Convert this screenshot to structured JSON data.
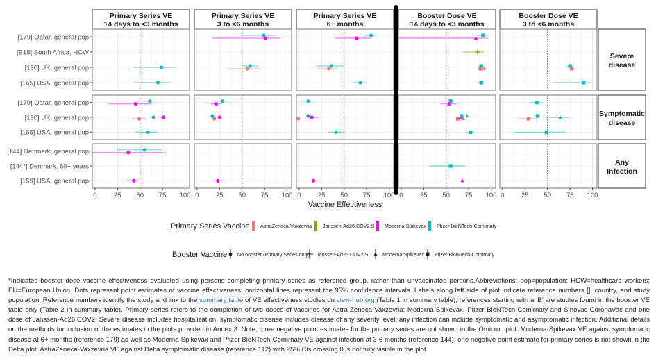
{
  "chart_data": {
    "type": "scatter",
    "subtype": "forest-plot-faceted",
    "xlabel": "Vaccine Effectiveness",
    "xlim": [
      -3,
      105
    ],
    "xticks": [
      0,
      25,
      50,
      75,
      100
    ],
    "reference_line": 50,
    "grid": true,
    "columns": [
      {
        "id": "ps1",
        "line1": "Primary Series VE",
        "line2": "14 days to <3 months"
      },
      {
        "id": "ps2",
        "line1": "Primary Series VE",
        "line2": "3 to <6 months"
      },
      {
        "id": "ps3",
        "line1": "Primary Series VE",
        "line2": "6+ months"
      },
      {
        "id": "b1",
        "line1": "Booster Dose VE",
        "line2": "14 days to <3 months"
      },
      {
        "id": "b2",
        "line1": "Booster Dose VE",
        "line2": "3 to <6 months"
      }
    ],
    "rows": [
      {
        "id": "severe",
        "line1": "Severe",
        "line2": "disease",
        "studies": [
          "[179] Qatar, general pop",
          "[B18] South Africa, HCW",
          "[130] UK, general pop",
          "[165] USA, general pop"
        ]
      },
      {
        "id": "symptomatic",
        "line1": "Symptomatic",
        "line2": "disease",
        "studies": [
          "[179] Qatar, general pop",
          "[130] UK, general pop",
          "[165] USA, general pop"
        ]
      },
      {
        "id": "infection",
        "line1": "Any",
        "line2": "Infection",
        "studies": [
          "[144] Denmark, general pop",
          "[144*] Denmark, 60+ years",
          "[159] USA, general pop"
        ]
      }
    ],
    "primary_vaccines": [
      {
        "key": "AZ",
        "name": "AstraZeneca-Vaxzevria",
        "color": "#F8766D"
      },
      {
        "key": "J",
        "name": "Janssen-Ad26.COV2.S",
        "color": "#7CAE00"
      },
      {
        "key": "M",
        "name": "Moderna-Spikevax",
        "color": "#FF00FF"
      },
      {
        "key": "P",
        "name": "Pfizer BioNTech-Comirnaty",
        "color": "#00BFC4"
      }
    ],
    "booster_vaccines": [
      {
        "key": "none",
        "name": "No booster (Primary Series only)",
        "shape": "circle"
      },
      {
        "key": "J",
        "name": "Janssen-Ad26.COV2.S",
        "shape": "plus"
      },
      {
        "key": "M",
        "name": "Moderna-Spikevax",
        "shape": "triangle"
      },
      {
        "key": "P",
        "name": "Pfizer BioNTech-Comirnaty",
        "shape": "square"
      }
    ],
    "points": [
      {
        "col": "ps1",
        "row": "severe",
        "study": 2,
        "primary": "P",
        "booster": "none",
        "ve": 74,
        "lo": 42,
        "hi": 89
      },
      {
        "col": "ps1",
        "row": "severe",
        "study": 3,
        "primary": "P",
        "booster": "none",
        "ve": 70,
        "lo": 43,
        "hi": 84
      },
      {
        "col": "ps2",
        "row": "severe",
        "study": 0,
        "primary": "P",
        "booster": "none",
        "ve": 74,
        "lo": 50,
        "hi": 87,
        "off": -1
      },
      {
        "col": "ps2",
        "row": "severe",
        "study": 0,
        "primary": "M",
        "booster": "none",
        "ve": 76,
        "lo": 17,
        "hi": 93,
        "off": 1
      },
      {
        "col": "ps2",
        "row": "severe",
        "study": 2,
        "primary": "P",
        "booster": "none",
        "ve": 59,
        "lo": 50,
        "hi": 68,
        "off": -1
      },
      {
        "col": "ps2",
        "row": "severe",
        "study": 2,
        "primary": "AZ",
        "booster": "none",
        "ve": 56,
        "lo": 35,
        "hi": 69,
        "off": 1
      },
      {
        "col": "ps3",
        "row": "severe",
        "study": 0,
        "primary": "P",
        "booster": "none",
        "ve": 80,
        "lo": 72,
        "hi": 85,
        "off": -1
      },
      {
        "col": "ps3",
        "row": "severe",
        "study": 0,
        "primary": "M",
        "booster": "none",
        "ve": 64,
        "lo": 40,
        "hi": 80,
        "off": 1
      },
      {
        "col": "ps3",
        "row": "severe",
        "study": 2,
        "primary": "P",
        "booster": "none",
        "ve": 36,
        "lo": 19,
        "hi": 49,
        "off": -1
      },
      {
        "col": "ps3",
        "row": "severe",
        "study": 2,
        "primary": "AZ",
        "booster": "none",
        "ve": 33,
        "lo": 21,
        "hi": 43,
        "off": 1
      },
      {
        "col": "ps3",
        "row": "severe",
        "study": 3,
        "primary": "P",
        "booster": "none",
        "ve": 68,
        "lo": 59,
        "hi": 75
      },
      {
        "col": "b1",
        "row": "severe",
        "study": 0,
        "primary": "P",
        "booster": "P",
        "ve": 91,
        "lo": 83,
        "hi": 96,
        "off": -1
      },
      {
        "col": "b1",
        "row": "severe",
        "study": 0,
        "primary": "M",
        "booster": "M",
        "ve": 83,
        "lo": -3,
        "hi": 97,
        "off": 1
      },
      {
        "col": "b1",
        "row": "severe",
        "study": 1,
        "primary": "J",
        "booster": "J",
        "ve": 85,
        "lo": 69,
        "hi": 92
      },
      {
        "col": "b1",
        "row": "severe",
        "study": 2,
        "primary": "P",
        "booster": "P",
        "ve": 89,
        "lo": 85,
        "hi": 92,
        "off": -1
      },
      {
        "col": "b1",
        "row": "severe",
        "study": 2,
        "primary": "AZ",
        "booster": "P",
        "ve": 88,
        "lo": 85,
        "hi": 91,
        "off": 1
      },
      {
        "col": "b1",
        "row": "severe",
        "study": 2,
        "primary": "AZ",
        "booster": "M",
        "ve": 92,
        "lo": 88,
        "hi": 94,
        "off": 1
      },
      {
        "col": "b1",
        "row": "severe",
        "study": 3,
        "primary": "P",
        "booster": "P",
        "ve": 89,
        "lo": 84,
        "hi": 92
      },
      {
        "col": "b2",
        "row": "severe",
        "study": 2,
        "primary": "P",
        "booster": "P",
        "ve": 75,
        "lo": 71,
        "hi": 79,
        "off": -1
      },
      {
        "col": "b2",
        "row": "severe",
        "study": 2,
        "primary": "AZ",
        "booster": "P",
        "ve": 77,
        "lo": 72,
        "hi": 81,
        "off": 1
      },
      {
        "col": "b2",
        "row": "severe",
        "study": 3,
        "primary": "P",
        "booster": "P",
        "ve": 90,
        "lo": 57,
        "hi": 98
      },
      {
        "col": "ps1",
        "row": "symptomatic",
        "study": 0,
        "primary": "P",
        "booster": "none",
        "ve": 61,
        "lo": 52,
        "hi": 69,
        "off": -1
      },
      {
        "col": "ps1",
        "row": "symptomatic",
        "study": 0,
        "primary": "M",
        "booster": "none",
        "ve": 45,
        "lo": 15,
        "hi": 63,
        "off": 1
      },
      {
        "col": "ps1",
        "row": "symptomatic",
        "study": 1,
        "primary": "P",
        "booster": "none",
        "ve": 65,
        "lo": 64,
        "hi": 66
      },
      {
        "col": "ps1",
        "row": "symptomatic",
        "study": 1,
        "primary": "M",
        "booster": "none",
        "ve": 76,
        "lo": 72,
        "hi": 79
      },
      {
        "col": "ps1",
        "row": "symptomatic",
        "study": 1,
        "primary": "AZ",
        "booster": "none",
        "ve": 49,
        "lo": 40,
        "hi": 57,
        "off": 1
      },
      {
        "col": "ps1",
        "row": "symptomatic",
        "study": 2,
        "primary": "P",
        "booster": "none",
        "ve": 59,
        "lo": 45,
        "hi": 70
      },
      {
        "col": "ps2",
        "row": "symptomatic",
        "study": 0,
        "primary": "P",
        "booster": "none",
        "ve": 28,
        "lo": 20,
        "hi": 36,
        "off": -1
      },
      {
        "col": "ps2",
        "row": "symptomatic",
        "study": 0,
        "primary": "M",
        "booster": "none",
        "ve": 21,
        "lo": 15,
        "hi": 27,
        "off": 1
      },
      {
        "col": "ps2",
        "row": "symptomatic",
        "study": 1,
        "primary": "P",
        "booster": "none",
        "ve": 17,
        "lo": 16,
        "hi": 18,
        "off": -1
      },
      {
        "col": "ps2",
        "row": "symptomatic",
        "study": 1,
        "primary": "AZ",
        "booster": "none",
        "ve": 19,
        "lo": 17,
        "hi": 21,
        "off": 1
      },
      {
        "col": "ps2",
        "row": "symptomatic",
        "study": 1,
        "primary": "M",
        "booster": "none",
        "ve": 25,
        "lo": 23,
        "hi": 27
      },
      {
        "col": "ps3",
        "row": "symptomatic",
        "study": 0,
        "primary": "P",
        "booster": "none",
        "ve": 10,
        "lo": 3,
        "hi": 17,
        "off": -1
      },
      {
        "col": "ps3",
        "row": "symptomatic",
        "study": 1,
        "primary": "AZ",
        "booster": "none",
        "ve": -1,
        "lo": -3,
        "hi": 1,
        "off": 1
      },
      {
        "col": "ps3",
        "row": "symptomatic",
        "study": 1,
        "primary": "P",
        "booster": "none",
        "ve": 10,
        "lo": 9,
        "hi": 11,
        "off": -1
      },
      {
        "col": "ps3",
        "row": "symptomatic",
        "study": 1,
        "primary": "M",
        "booster": "none",
        "ve": 14,
        "lo": 9,
        "hi": 22
      },
      {
        "col": "ps3",
        "row": "symptomatic",
        "study": 2,
        "primary": "P",
        "booster": "none",
        "ve": 41,
        "lo": 32,
        "hi": 50
      },
      {
        "col": "b1",
        "row": "symptomatic",
        "study": 0,
        "primary": "P",
        "booster": "P",
        "ve": 55,
        "lo": 51,
        "hi": 59,
        "off": -1
      },
      {
        "col": "b1",
        "row": "symptomatic",
        "study": 0,
        "primary": "M",
        "booster": "M",
        "ve": 53,
        "lo": 44,
        "hi": 61,
        "off": 1
      },
      {
        "col": "b1",
        "row": "symptomatic",
        "study": 1,
        "primary": "AZ",
        "booster": "P",
        "ve": 63,
        "lo": 62,
        "hi": 64,
        "off": 1
      },
      {
        "col": "b1",
        "row": "symptomatic",
        "study": 1,
        "primary": "M",
        "booster": "M",
        "ve": 66,
        "lo": 65,
        "hi": 67
      },
      {
        "col": "b1",
        "row": "symptomatic",
        "study": 1,
        "primary": "P",
        "booster": "P",
        "ve": 67,
        "lo": 66,
        "hi": 68,
        "off": -1
      },
      {
        "col": "b1",
        "row": "symptomatic",
        "study": 1,
        "primary": "AZ",
        "booster": "M",
        "ve": 69,
        "lo": 68,
        "hi": 70,
        "off": 1
      },
      {
        "col": "b1",
        "row": "symptomatic",
        "study": 1,
        "primary": "P",
        "booster": "M",
        "ve": 73,
        "lo": 72,
        "hi": 74,
        "off": -1
      },
      {
        "col": "b1",
        "row": "symptomatic",
        "study": 2,
        "primary": "P",
        "booster": "P",
        "ve": 77,
        "lo": 73,
        "hi": 81
      },
      {
        "col": "b2",
        "row": "symptomatic",
        "study": 0,
        "primary": "P",
        "booster": "P",
        "ve": 38,
        "lo": 31,
        "hi": 44
      },
      {
        "col": "b2",
        "row": "symptomatic",
        "study": 1,
        "primary": "P",
        "booster": "P",
        "ve": 39,
        "lo": 36,
        "hi": 42,
        "off": -1
      },
      {
        "col": "b2",
        "row": "symptomatic",
        "study": 1,
        "primary": "AZ",
        "booster": "P",
        "ve": 29,
        "lo": 18,
        "hi": 38,
        "off": 1
      },
      {
        "col": "b2",
        "row": "symptomatic",
        "study": 1,
        "primary": "P",
        "booster": "M",
        "ve": 64,
        "lo": 51,
        "hi": 74
      },
      {
        "col": "b2",
        "row": "symptomatic",
        "study": 2,
        "primary": "P",
        "booster": "P",
        "ve": 49,
        "lo": 14,
        "hi": 70
      },
      {
        "col": "ps1",
        "row": "infection",
        "study": 0,
        "primary": "P",
        "booster": "none",
        "ve": 55,
        "lo": 24,
        "hi": 74,
        "off": -1
      },
      {
        "col": "ps1",
        "row": "infection",
        "study": 0,
        "primary": "M",
        "booster": "none",
        "ve": 37,
        "lo": -3,
        "hi": 76,
        "off": 1
      },
      {
        "col": "ps1",
        "row": "infection",
        "study": 2,
        "primary": "M",
        "booster": "none",
        "ve": 43,
        "lo": 34,
        "hi": 50
      },
      {
        "col": "ps2",
        "row": "infection",
        "study": 2,
        "primary": "M",
        "booster": "none",
        "ve": 23,
        "lo": 16,
        "hi": 30
      },
      {
        "col": "ps3",
        "row": "infection",
        "study": 2,
        "primary": "M",
        "booster": "none",
        "ve": 16,
        "lo": 13,
        "hi": 19
      },
      {
        "col": "b1",
        "row": "infection",
        "study": 1,
        "primary": "P",
        "booster": "P",
        "ve": 55,
        "lo": 31,
        "hi": 71
      },
      {
        "col": "b1",
        "row": "infection",
        "study": 2,
        "primary": "M",
        "booster": "M",
        "ve": 68,
        "lo": 67,
        "hi": 69
      }
    ]
  },
  "legend": {
    "primary_title": "Primary Series Vaccine",
    "booster_title": "Booster Vaccine"
  },
  "footnote": {
    "part1": "*Indicates booster dose vaccine effectiveness evaluated using persons completing primary series as reference group, rather than unvaccinated persons.Abbreviations: pop=population; HCW=healthcare workers; EU=European Union. Dots represent point estimates of vaccine effectiveness; horizontal lines represent the 95% confidence intervals. Labels along left side of plot indicate reference numbers [], country, and study population. Reference numbers identify the study and link to the ",
    "link1": "summary table",
    "part2": " of VE effectiveness studies on ",
    "link2": "view-hub.org",
    "part3": " (Table 1 in summary table); references starting with a ‘B’ are studies found in the booster VE table only (Table 2 in summary table). Primary series refers to the completion of two doses of vaccines for Astra-Zeneca-Vaxzevria; Moderna-Spikevax, Pfizer BioNTech-Comirnaty and Sinovac-CoronaVac and one dose of Janssen-Ad26.COV2. Severe disease includes hospitalization; symptomatic disease includes disease of any severity level; any infection can include symptomatic and asymptomatic infection. Additional details on the methods for inclusion of the estimates in the plots provided in Annex 3. Note, three negative point estimates for the primary series are not shown in the Omicron plot: Moderna-Spikevax VE against symptomatic disease at 6+ months (reference 179) as well as Moderna-Spikevax and Pfizer BioNTech-Comirnaty VE against infection at 3-6 months (reference 144); one negative point estimate for primary series is not shown in the Delta plot: AstraZeneca-Vaxzevria VE against Delta symptomatic disease (reference 112) with 95% Cis crossing 0 is not fully visible in the plot."
  }
}
